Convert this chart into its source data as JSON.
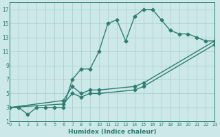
{
  "xlabel": "Humidex (Indice chaleur)",
  "bg_color": "#cce8e8",
  "line_color": "#2e7d72",
  "grid_color": "#aacccc",
  "line1_x": [
    0,
    1,
    2,
    3,
    4,
    5,
    6,
    7,
    8,
    9,
    10,
    11,
    12,
    13,
    14,
    15,
    16,
    17,
    18,
    19,
    20,
    21,
    22,
    23
  ],
  "line1_y": [
    3,
    3,
    2,
    3,
    3,
    3,
    3,
    7,
    8.5,
    8.5,
    11,
    15,
    15.5,
    12.5,
    16,
    17,
    17,
    15.5,
    14,
    13.5,
    13.5,
    13,
    12.5,
    12.5
  ],
  "line2_x": [
    0,
    6,
    7,
    8,
    9,
    10,
    14,
    15,
    23
  ],
  "line2_y": [
    3,
    4,
    6,
    5,
    5.5,
    5.5,
    6,
    6.5,
    12.5
  ],
  "line3_x": [
    0,
    6,
    7,
    8,
    9,
    10,
    14,
    15,
    23
  ],
  "line3_y": [
    3,
    3.5,
    5,
    4.5,
    5,
    5,
    5.5,
    6,
    12
  ],
  "xlim": [
    0,
    23
  ],
  "ylim": [
    1,
    18
  ],
  "xticks": [
    0,
    1,
    2,
    3,
    4,
    5,
    6,
    7,
    8,
    9,
    10,
    11,
    12,
    13,
    14,
    15,
    16,
    17,
    18,
    19,
    20,
    21,
    22,
    23
  ],
  "yticks": [
    1,
    3,
    5,
    7,
    9,
    11,
    13,
    15,
    17
  ],
  "markersize": 2.5,
  "linewidth": 1.0
}
